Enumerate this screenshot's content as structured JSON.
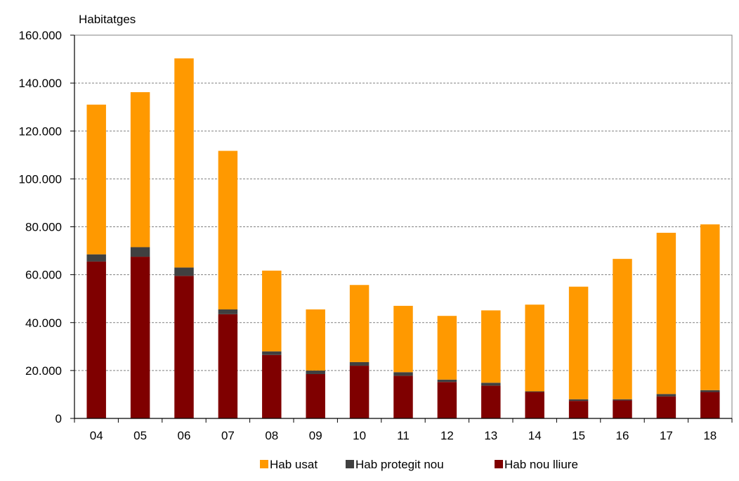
{
  "chart_data": {
    "type": "bar",
    "stacked": true,
    "ylabel": "Habitatges",
    "xlabel": "",
    "title": "",
    "categories": [
      "04",
      "05",
      "06",
      "07",
      "08",
      "09",
      "10",
      "11",
      "12",
      "13",
      "14",
      "15",
      "16",
      "17",
      "18"
    ],
    "series": [
      {
        "name": "Hab nou lliure",
        "color": "#7f0000",
        "values": [
          65500,
          67500,
          59500,
          43500,
          26500,
          18500,
          22000,
          17800,
          15200,
          13700,
          11000,
          7300,
          7500,
          9200,
          11000
        ]
      },
      {
        "name": "Hab protegit nou",
        "color": "#404040",
        "values": [
          3000,
          4000,
          3500,
          2000,
          1500,
          1500,
          1500,
          1500,
          1000,
          1200,
          300,
          700,
          500,
          1000,
          800
        ]
      },
      {
        "name": "Hab usat",
        "color": "#ff9900",
        "values": [
          62500,
          64700,
          87300,
          66200,
          33700,
          25500,
          32200,
          27700,
          26600,
          30200,
          36200,
          47000,
          58600,
          67300,
          69200
        ]
      }
    ],
    "legend_order": [
      "Hab usat",
      "Hab protegit nou",
      "Hab nou lliure"
    ],
    "legend_position": "bottom",
    "ylim": [
      0,
      160000
    ],
    "yticks": [
      0,
      20000,
      40000,
      60000,
      80000,
      100000,
      120000,
      140000,
      160000
    ],
    "ytick_labels": [
      "0",
      "20.000",
      "40.000",
      "60.000",
      "80.000",
      "100.000",
      "120.000",
      "140.000",
      "160.000"
    ],
    "grid": true
  }
}
